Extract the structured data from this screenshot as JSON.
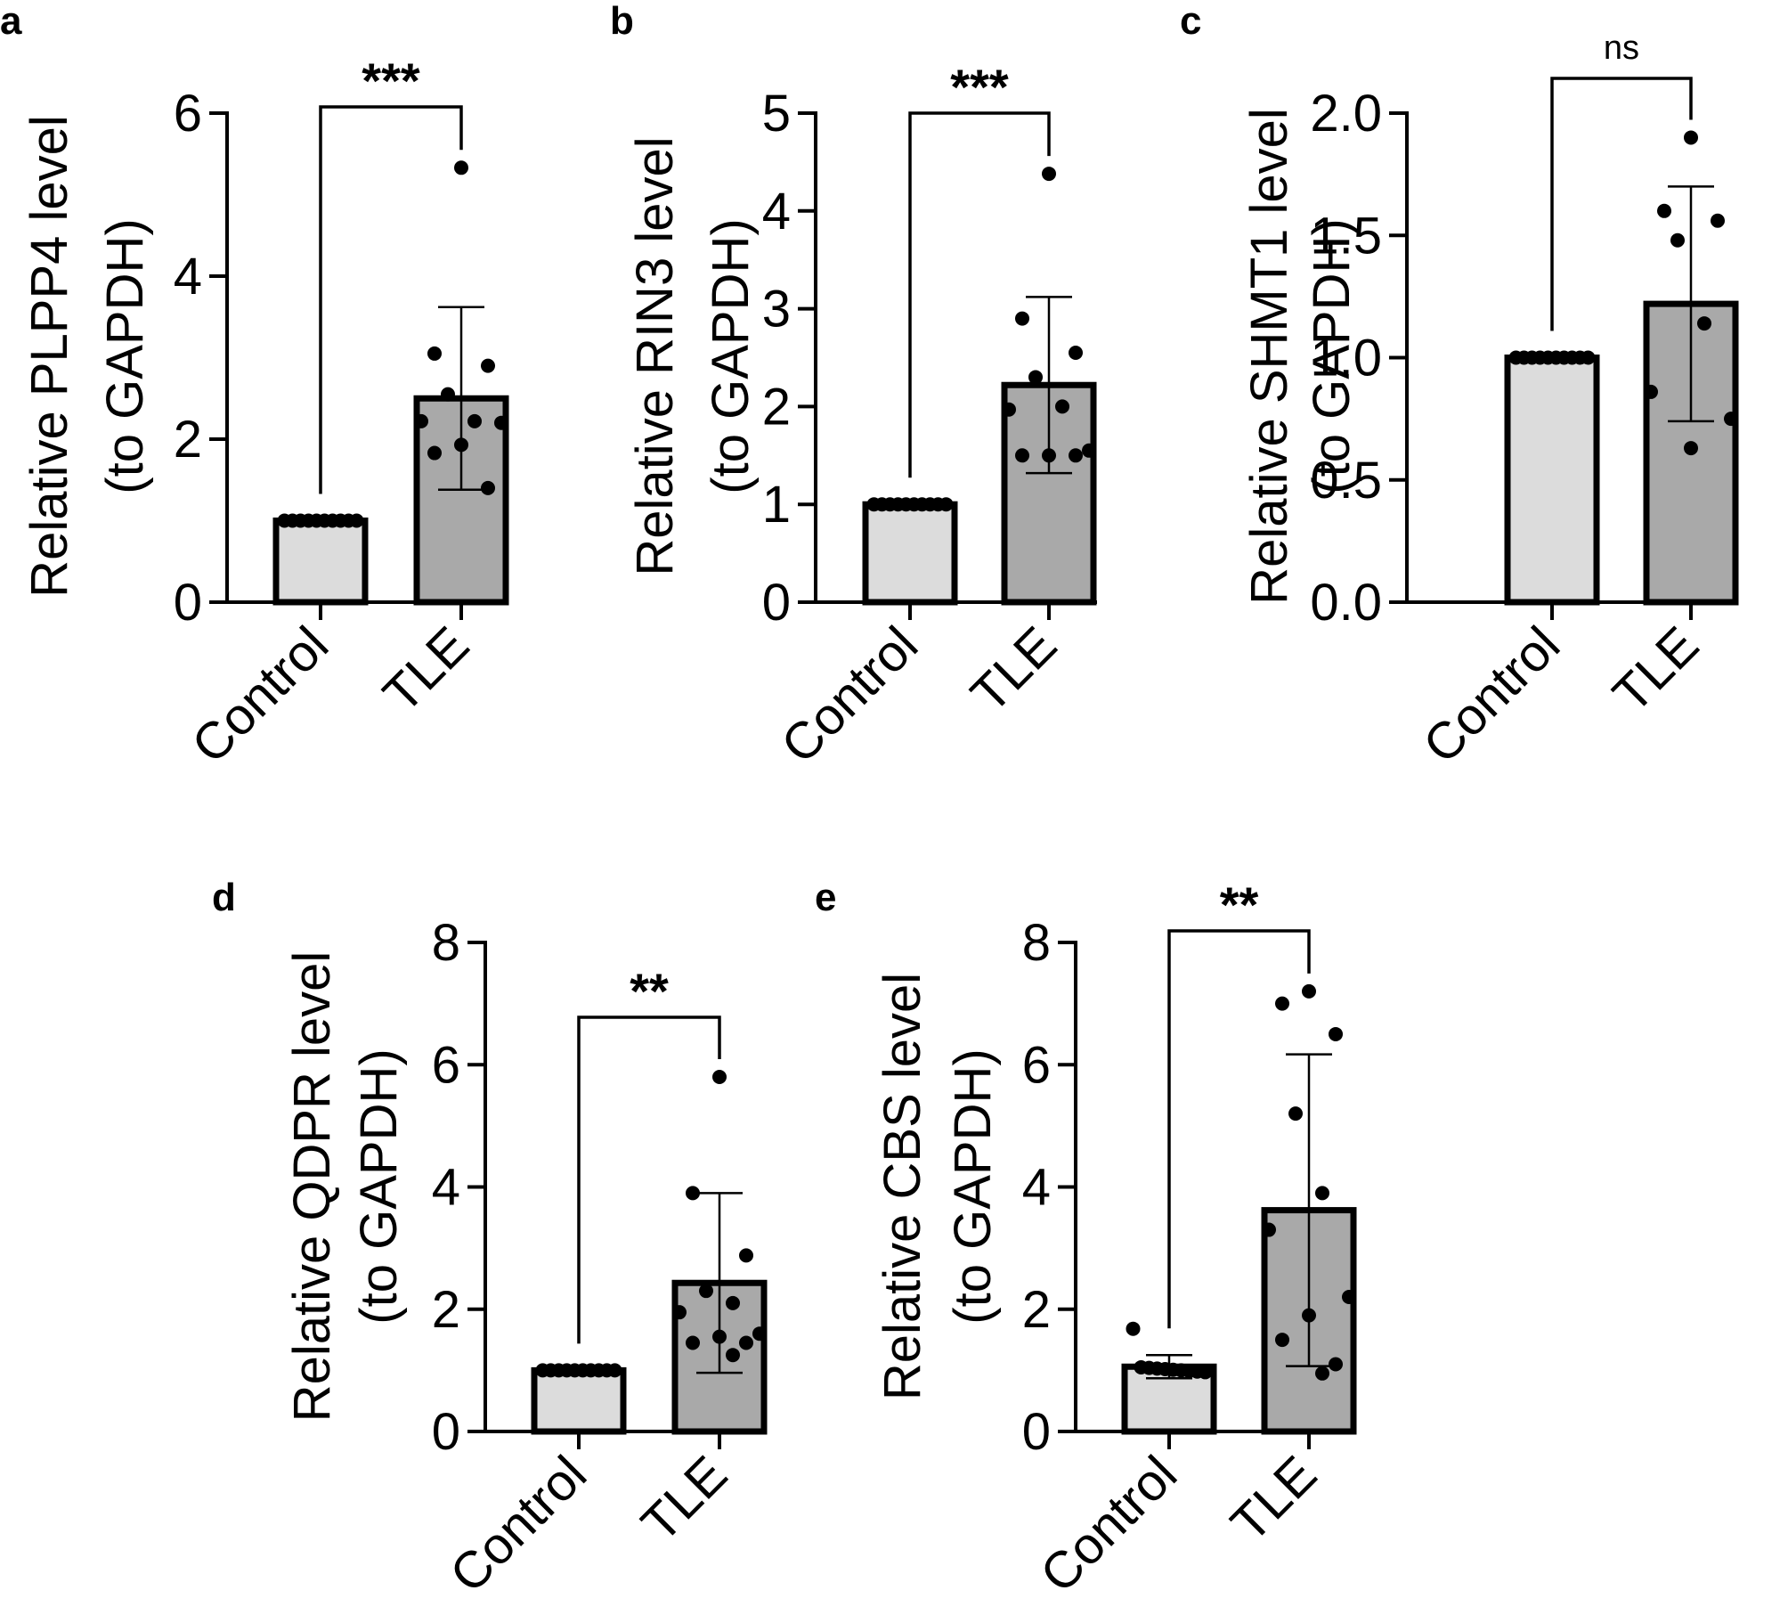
{
  "colors": {
    "control_fill": "#dcdcdc",
    "tle_fill": "#a9a9a9",
    "stroke": "#000000",
    "dot": "#000000"
  },
  "chart_data": [
    {
      "panel": "a",
      "type": "bar",
      "ylabel_line1": "Relative PLPP4 level",
      "ylabel_line2": "(to GAPDH)",
      "categories": [
        "Control",
        "TLE"
      ],
      "values": [
        1.0,
        2.5
      ],
      "error_sd": [
        0.0,
        1.12
      ],
      "points": [
        [
          1,
          1,
          1,
          1,
          1,
          1,
          1,
          1,
          1,
          1
        ],
        [
          5.33,
          3.05,
          2.9,
          2.55,
          2.22,
          2.22,
          2.2,
          1.93,
          1.83,
          1.4
        ]
      ],
      "ylim": [
        0,
        6
      ],
      "yticks": [
        "0",
        "2",
        "4",
        "6"
      ],
      "ytick_values": [
        0,
        2,
        4,
        6
      ],
      "significance": "***"
    },
    {
      "panel": "b",
      "type": "bar",
      "ylabel_line1": "Relative RIN3 level",
      "ylabel_line2": "(to GAPDH)",
      "categories": [
        "Control",
        "TLE"
      ],
      "values": [
        1.0,
        2.22
      ],
      "error_sd": [
        0.0,
        0.9
      ],
      "points": [
        [
          1,
          1,
          1,
          1,
          1,
          1,
          1,
          1,
          1,
          1
        ],
        [
          4.38,
          2.9,
          2.55,
          2.3,
          2.0,
          1.97,
          1.55,
          1.5,
          1.5,
          1.5
        ]
      ],
      "ylim": [
        0,
        5
      ],
      "yticks": [
        "0",
        "1",
        "2",
        "3",
        "4",
        "5"
      ],
      "ytick_values": [
        0,
        1,
        2,
        3,
        4,
        5
      ],
      "significance": "***"
    },
    {
      "panel": "c",
      "type": "bar",
      "ylabel_line1": "Relative SHMT1 level",
      "ylabel_line2": "(to GAPDH)",
      "categories": [
        "Control",
        "TLE"
      ],
      "values": [
        1.0,
        1.22
      ],
      "error_sd": [
        0.0,
        0.48
      ],
      "points": [
        [
          1,
          1,
          1,
          1,
          1,
          1,
          1,
          1,
          1,
          1
        ],
        [
          1.9,
          1.6,
          1.56,
          1.48,
          1.14,
          0.86,
          0.75,
          0.63
        ]
      ],
      "ylim": [
        0,
        2
      ],
      "yticks": [
        "0.0",
        "0.5",
        "1.0",
        "1.5",
        "2.0"
      ],
      "ytick_values": [
        0,
        0.5,
        1,
        1.5,
        2
      ],
      "significance": "ns"
    },
    {
      "panel": "d",
      "type": "bar",
      "ylabel_line1": "Relative QDPR level",
      "ylabel_line2": "(to GAPDH)",
      "categories": [
        "Control",
        "TLE"
      ],
      "values": [
        1.0,
        2.43
      ],
      "error_sd": [
        0.0,
        1.47
      ],
      "points": [
        [
          1,
          1,
          1,
          1,
          1,
          1,
          1,
          1,
          1,
          1
        ],
        [
          5.8,
          3.9,
          2.88,
          2.3,
          2.1,
          1.95,
          1.6,
          1.55,
          1.45,
          1.45,
          1.25
        ]
      ],
      "ylim": [
        0,
        8
      ],
      "yticks": [
        "0",
        "2",
        "4",
        "6",
        "8"
      ],
      "ytick_values": [
        0,
        2,
        4,
        6,
        8
      ],
      "significance": "**"
    },
    {
      "panel": "e",
      "type": "bar",
      "ylabel_line1": "Relative CBS level",
      "ylabel_line2": "(to GAPDH)",
      "categories": [
        "Control",
        "TLE"
      ],
      "values": [
        1.06,
        3.62
      ],
      "error_sd": [
        0.19,
        2.55
      ],
      "points": [
        [
          1.68,
          1.05,
          1.04,
          1.03,
          1.02,
          1.01,
          1.0,
          0.99,
          0.98,
          0.97
        ],
        [
          7.2,
          7.0,
          6.5,
          5.2,
          3.9,
          3.3,
          2.2,
          1.9,
          1.5,
          1.1,
          0.95
        ]
      ],
      "ylim": [
        0,
        8
      ],
      "yticks": [
        "0",
        "2",
        "4",
        "6",
        "8"
      ],
      "ytick_values": [
        0,
        2,
        4,
        6,
        8
      ],
      "significance": "**"
    }
  ]
}
